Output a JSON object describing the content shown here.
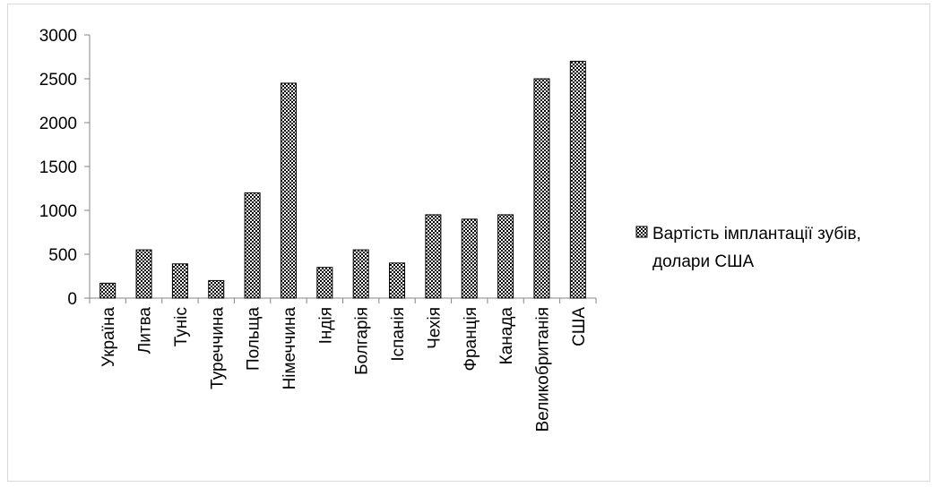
{
  "chart_data": {
    "type": "bar",
    "categories": [
      "Україна",
      "Литва",
      "Туніс",
      "Туреччина",
      "Польща",
      "Німеччина",
      "Індія",
      "Болгарія",
      "Іспанія",
      "Чехія",
      "Франція",
      "Канада",
      "Великобританія",
      "США"
    ],
    "series": [
      {
        "name": "Вартість імплантації зубів, долари США",
        "values": [
          170,
          550,
          390,
          200,
          1200,
          2450,
          350,
          550,
          400,
          950,
          900,
          950,
          2500,
          2700
        ]
      }
    ],
    "ylim": [
      0,
      3000
    ],
    "yticks": [
      "0",
      "500",
      "1000",
      "1500",
      "2000",
      "2500",
      "3000"
    ],
    "grid": false,
    "legend_position": "right",
    "bar_pattern": "checkered",
    "colors": {
      "bar_stroke": "#000000",
      "axis": "#868686",
      "frame": "#d9d9d9"
    }
  },
  "legend": {
    "line1": "Вартість імплантації зубів,",
    "line2": "долари США"
  }
}
